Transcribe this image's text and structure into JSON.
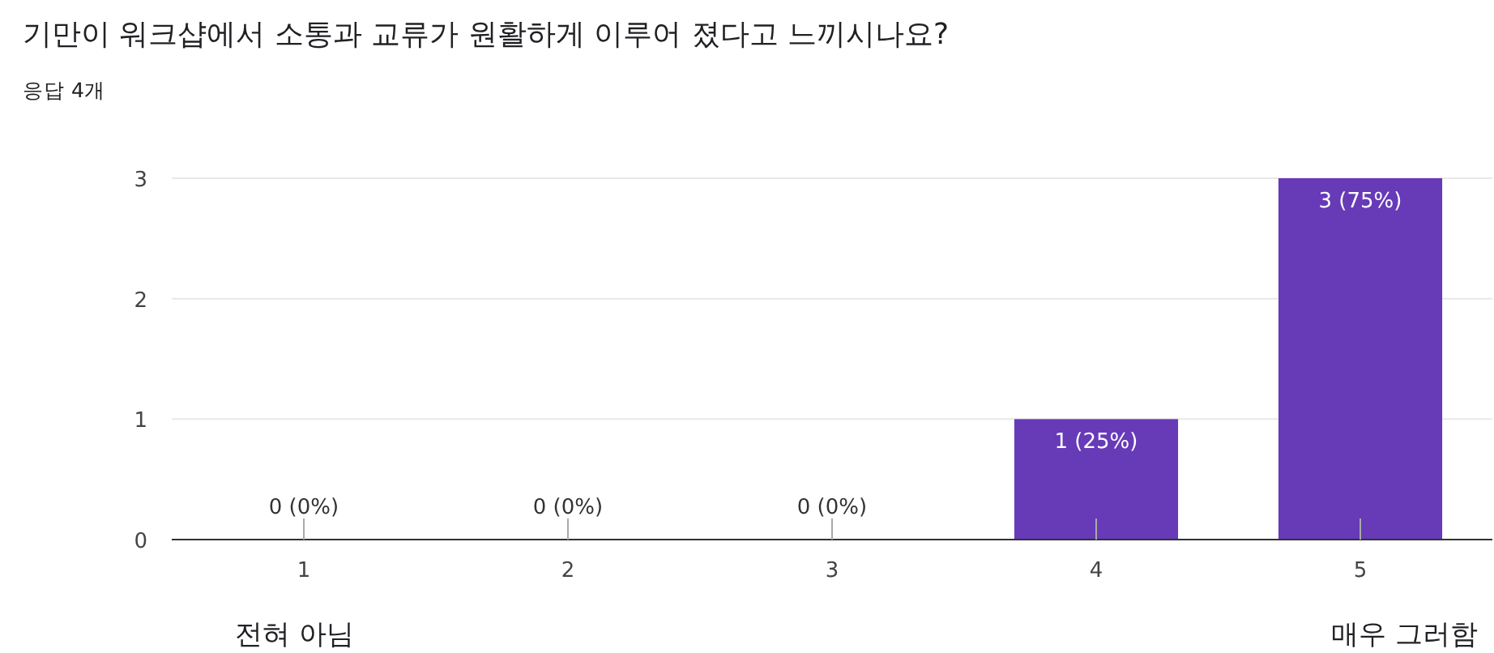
{
  "chart_data": {
    "type": "bar",
    "title": "기만이 워크샵에서 소통과 교류가 원활하게 이루어 졌다고 느끼시나요?",
    "subtitle": "응답 4개",
    "categories": [
      "1",
      "2",
      "3",
      "4",
      "5"
    ],
    "values": [
      0,
      0,
      0,
      1,
      3
    ],
    "value_labels": [
      "0 (0%)",
      "0 (0%)",
      "0 (0%)",
      "1 (25%)",
      "3 (75%)"
    ],
    "color": "#673ab7",
    "ylim": [
      0,
      3
    ],
    "yticks": [
      0,
      1,
      2,
      3
    ],
    "grid": "y",
    "annotations": [
      "전혀 아님",
      "매우 그러함"
    ]
  }
}
